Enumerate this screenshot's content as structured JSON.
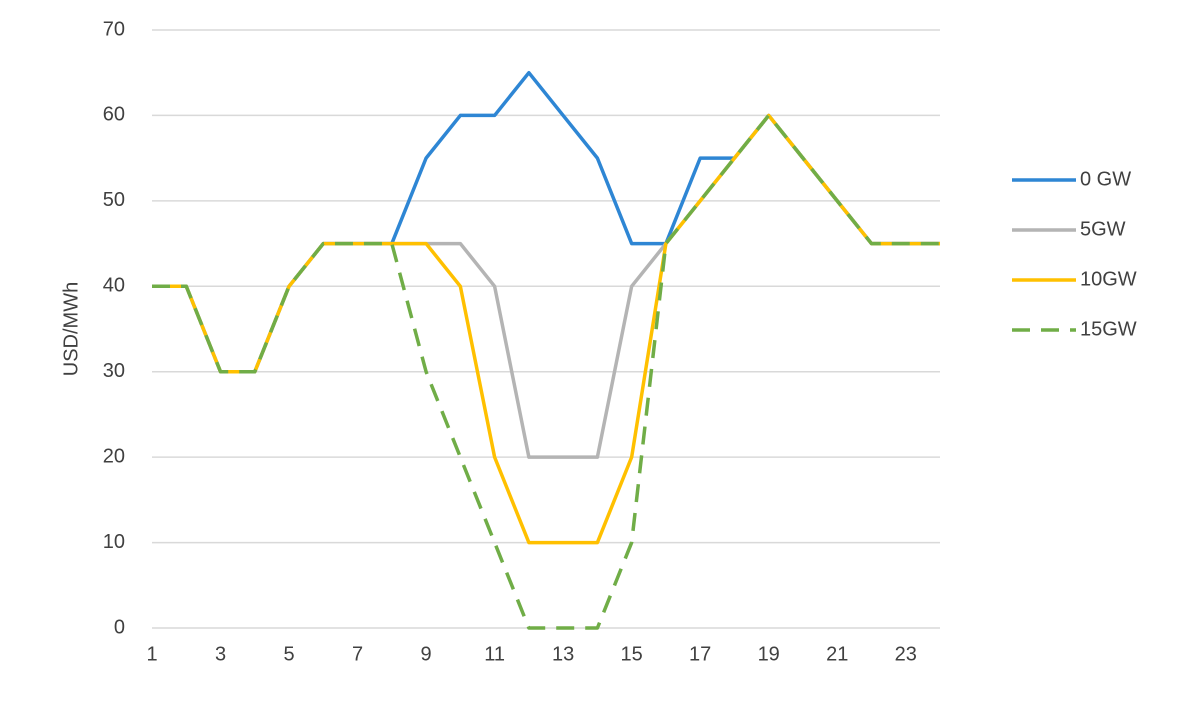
{
  "chart_data": {
    "type": "line",
    "y_label": "USD/MWh",
    "x": [
      1,
      2,
      3,
      4,
      5,
      6,
      7,
      8,
      9,
      10,
      11,
      12,
      13,
      14,
      15,
      16,
      17,
      18,
      19,
      20,
      21,
      22,
      23,
      24
    ],
    "series": [
      {
        "name": "0 GW",
        "color": "#2e86d4",
        "line_style": "solid",
        "values": [
          40,
          40,
          30,
          30,
          40,
          45,
          45,
          45,
          55,
          60,
          60,
          65,
          60,
          55,
          45,
          45,
          55,
          55,
          60,
          55,
          50,
          45,
          45,
          45
        ]
      },
      {
        "name": "5GW",
        "color": "#b4b4b4",
        "line_style": "solid",
        "values": [
          40,
          40,
          30,
          30,
          40,
          45,
          45,
          45,
          45,
          45,
          40,
          20,
          20,
          20,
          40,
          45,
          50,
          55,
          60,
          55,
          50,
          45,
          45,
          45
        ]
      },
      {
        "name": "10GW",
        "color": "#ffc000",
        "line_style": "solid",
        "values": [
          40,
          40,
          30,
          30,
          40,
          45,
          45,
          45,
          45,
          40,
          20,
          10,
          10,
          10,
          20,
          45,
          50,
          55,
          60,
          55,
          50,
          45,
          45,
          45
        ]
      },
      {
        "name": "15GW",
        "color": "#70ad47",
        "line_style": "dashed",
        "values": [
          40,
          40,
          30,
          30,
          40,
          45,
          45,
          45,
          30,
          20,
          10,
          0,
          0,
          0,
          10,
          45,
          50,
          55,
          60,
          55,
          50,
          45,
          45,
          45
        ]
      }
    ],
    "xlim": [
      1,
      24
    ],
    "xticks": [
      1,
      3,
      5,
      7,
      9,
      11,
      13,
      15,
      17,
      19,
      21,
      23
    ],
    "ylim": [
      0,
      70
    ],
    "yticks": [
      0,
      10,
      20,
      30,
      40,
      50,
      60,
      70
    ],
    "grid": true,
    "legend": "right"
  }
}
